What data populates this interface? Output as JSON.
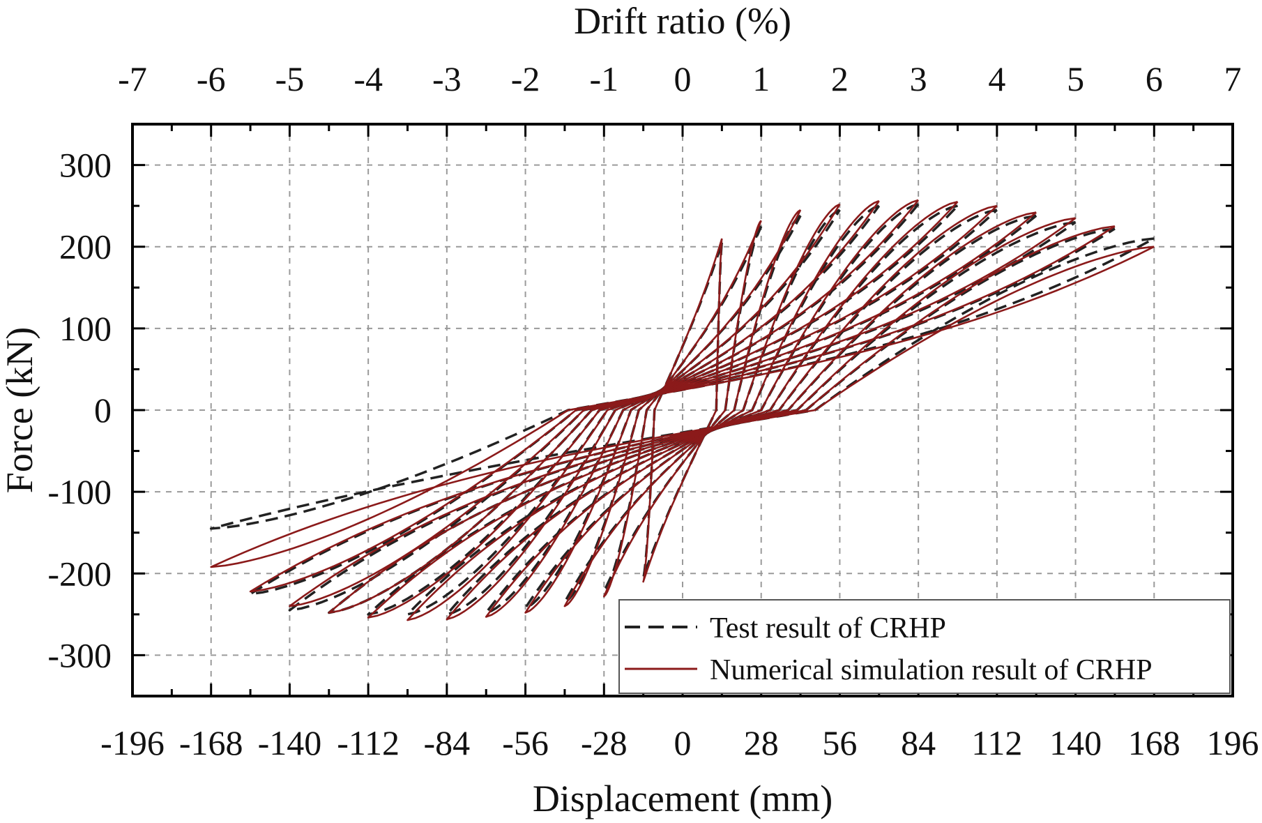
{
  "chart_data": {
    "type": "line",
    "title": "",
    "top_axis": {
      "label": "Drift ratio (%)",
      "ticks": [
        "-7",
        "-6",
        "-5",
        "-4",
        "-3",
        "-2",
        "-1",
        "0",
        "1",
        "2",
        "3",
        "4",
        "5",
        "6",
        "7"
      ],
      "xlim": [
        -7,
        7
      ]
    },
    "xlabel": "Displacement (mm)",
    "x_ticks": [
      "-196",
      "-168",
      "-140",
      "-112",
      "-84",
      "-56",
      "-28",
      "0",
      "28",
      "56",
      "84",
      "112",
      "140",
      "168",
      "196"
    ],
    "xlim": [
      -196,
      196
    ],
    "ylabel": "Force (kN)",
    "y_ticks": [
      "-300",
      "-200",
      "-100",
      "0",
      "100",
      "200",
      "300"
    ],
    "ylim": [
      -350,
      350
    ],
    "grid": true,
    "legend_position": "bottom-right",
    "colors": {
      "test": "#222222",
      "simulation": "#8b1a1a",
      "grid": "#9a9a9a",
      "axis": "#000000"
    },
    "series": [
      {
        "name": "Test result of CRHP",
        "style": "dashed",
        "color": "#222222",
        "loops": [
          {
            "d_max": 14,
            "f_max": 205,
            "d_min": -14,
            "f_min": -205
          },
          {
            "d_max": 28,
            "f_max": 225,
            "d_min": -28,
            "f_min": -222
          },
          {
            "d_max": 42,
            "f_max": 238,
            "d_min": -42,
            "f_min": -235
          },
          {
            "d_max": 56,
            "f_max": 245,
            "d_min": -56,
            "f_min": -242
          },
          {
            "d_max": 70,
            "f_max": 250,
            "d_min": -70,
            "f_min": -248
          },
          {
            "d_max": 84,
            "f_max": 252,
            "d_min": -84,
            "f_min": -250
          },
          {
            "d_max": 98,
            "f_max": 250,
            "d_min": -98,
            "f_min": -250
          },
          {
            "d_max": 112,
            "f_max": 245,
            "d_min": -112,
            "f_min": -250
          },
          {
            "d_max": 126,
            "f_max": 238,
            "d_min": -126,
            "f_min": -248
          },
          {
            "d_max": 140,
            "f_max": 230,
            "d_min": -140,
            "f_min": -245
          },
          {
            "d_max": 154,
            "f_max": 222,
            "d_min": -154,
            "f_min": -225
          },
          {
            "d_max": 168,
            "f_max": 210,
            "d_min": -168,
            "f_min": -145
          }
        ]
      },
      {
        "name": "Numerical simulation result of CRHP",
        "style": "solid",
        "color": "#8b1a1a",
        "loops": [
          {
            "d_max": 14,
            "f_max": 210,
            "d_min": -14,
            "f_min": -210
          },
          {
            "d_max": 28,
            "f_max": 232,
            "d_min": -28,
            "f_min": -228
          },
          {
            "d_max": 42,
            "f_max": 245,
            "d_min": -42,
            "f_min": -240
          },
          {
            "d_max": 56,
            "f_max": 252,
            "d_min": -56,
            "f_min": -248
          },
          {
            "d_max": 70,
            "f_max": 256,
            "d_min": -70,
            "f_min": -253
          },
          {
            "d_max": 84,
            "f_max": 257,
            "d_min": -84,
            "f_min": -256
          },
          {
            "d_max": 98,
            "f_max": 255,
            "d_min": -98,
            "f_min": -257
          },
          {
            "d_max": 112,
            "f_max": 250,
            "d_min": -112,
            "f_min": -254
          },
          {
            "d_max": 126,
            "f_max": 242,
            "d_min": -126,
            "f_min": -248
          },
          {
            "d_max": 140,
            "f_max": 235,
            "d_min": -140,
            "f_min": -240
          },
          {
            "d_max": 154,
            "f_max": 225,
            "d_min": -154,
            "f_min": -222
          },
          {
            "d_max": 168,
            "f_max": 200,
            "d_min": -168,
            "f_min": -192
          }
        ]
      }
    ]
  }
}
